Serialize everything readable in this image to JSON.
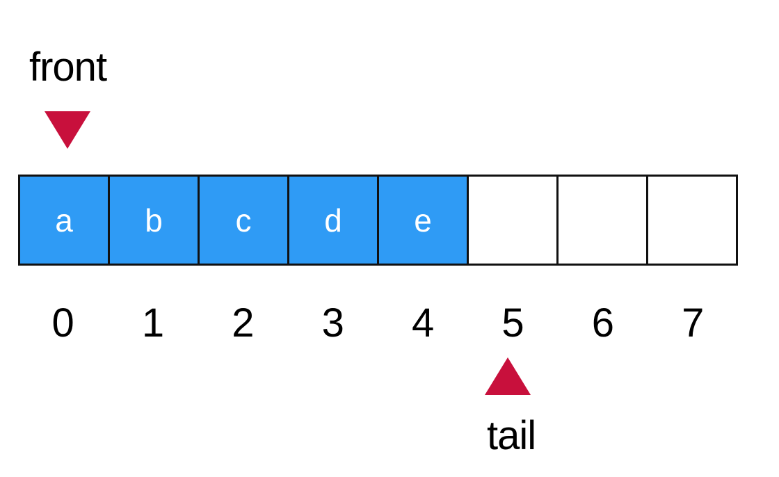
{
  "front": {
    "label": "front",
    "index": 0
  },
  "tail": {
    "label": "tail",
    "index": 5
  },
  "colors": {
    "filled_cell": "#2f9bf5",
    "pointer_arrow": "#c8103c",
    "border": "#111111"
  },
  "cells": [
    {
      "index": "0",
      "value": "a",
      "filled": true
    },
    {
      "index": "1",
      "value": "b",
      "filled": true
    },
    {
      "index": "2",
      "value": "c",
      "filled": true
    },
    {
      "index": "3",
      "value": "d",
      "filled": true
    },
    {
      "index": "4",
      "value": "e",
      "filled": true
    },
    {
      "index": "5",
      "value": "",
      "filled": false
    },
    {
      "index": "6",
      "value": "",
      "filled": false
    },
    {
      "index": "7",
      "value": "",
      "filled": false
    }
  ]
}
